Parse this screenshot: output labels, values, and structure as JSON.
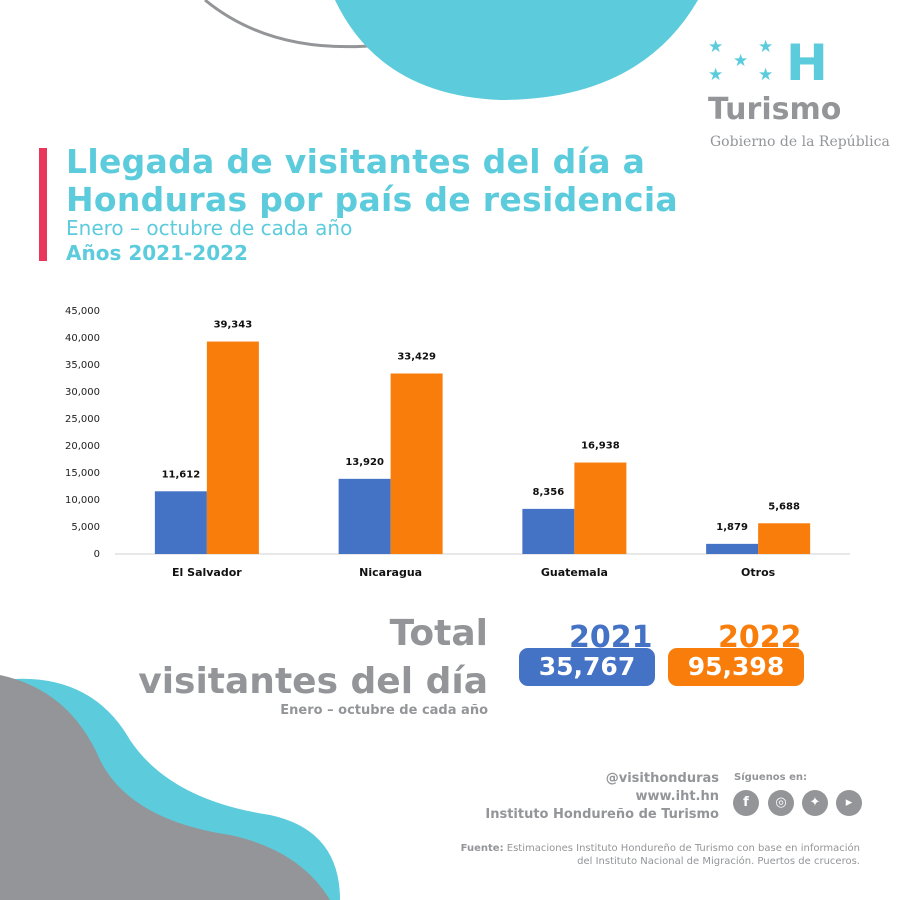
{
  "logo": {
    "letter": "H",
    "name": "Turismo",
    "subtitle": "Gobierno de la República"
  },
  "header": {
    "title_line1": "Llegada de visitantes del día a",
    "title_line2": "Honduras por país de residencia",
    "subtitle": "Enero – octubre de cada año",
    "years": "Años 2021-2022"
  },
  "chart_data": {
    "type": "bar",
    "categories": [
      "El Salvador",
      "Nicaragua",
      "Guatemala",
      "Otros"
    ],
    "series": [
      {
        "name": "2021",
        "color": "#4472c4",
        "values": [
          11612,
          13920,
          8356,
          1879
        ],
        "labels": [
          "11,612",
          "13,920",
          "8,356",
          "1,879"
        ]
      },
      {
        "name": "2022",
        "color": "#f97d0b",
        "values": [
          39343,
          33429,
          16938,
          5688
        ],
        "labels": [
          "39,343",
          "33,429",
          "16,938",
          "5,688"
        ]
      }
    ],
    "ylim": [
      0,
      45000
    ],
    "yticks": [
      "0",
      "5,000",
      "10,000",
      "15,000",
      "20,000",
      "25,000",
      "30,000",
      "35,000",
      "40,000",
      "45,000"
    ],
    "grid": false
  },
  "totals": {
    "line1": "Total",
    "line2": "visitantes del día",
    "period": "Enero – octubre de cada año",
    "items": [
      {
        "year": "2021",
        "value": "35,767"
      },
      {
        "year": "2022",
        "value": "95,398"
      }
    ]
  },
  "footer": {
    "handle": "@visithonduras",
    "url": "www.iht.hn",
    "org": "Instituto Hondureño de Turismo",
    "follow": "Síguenos en:",
    "source_label": "Fuente:",
    "source_line1": " Estimaciones Instituto Hondureño de Turismo con base en información",
    "source_line2": "del Instituto Nacional de Migración. Puertos de cruceros."
  },
  "colors": {
    "teal": "#5ccbdc",
    "gray": "#939598",
    "blue": "#4472c4",
    "orange": "#f97d0b",
    "accent": "#e8375a"
  }
}
